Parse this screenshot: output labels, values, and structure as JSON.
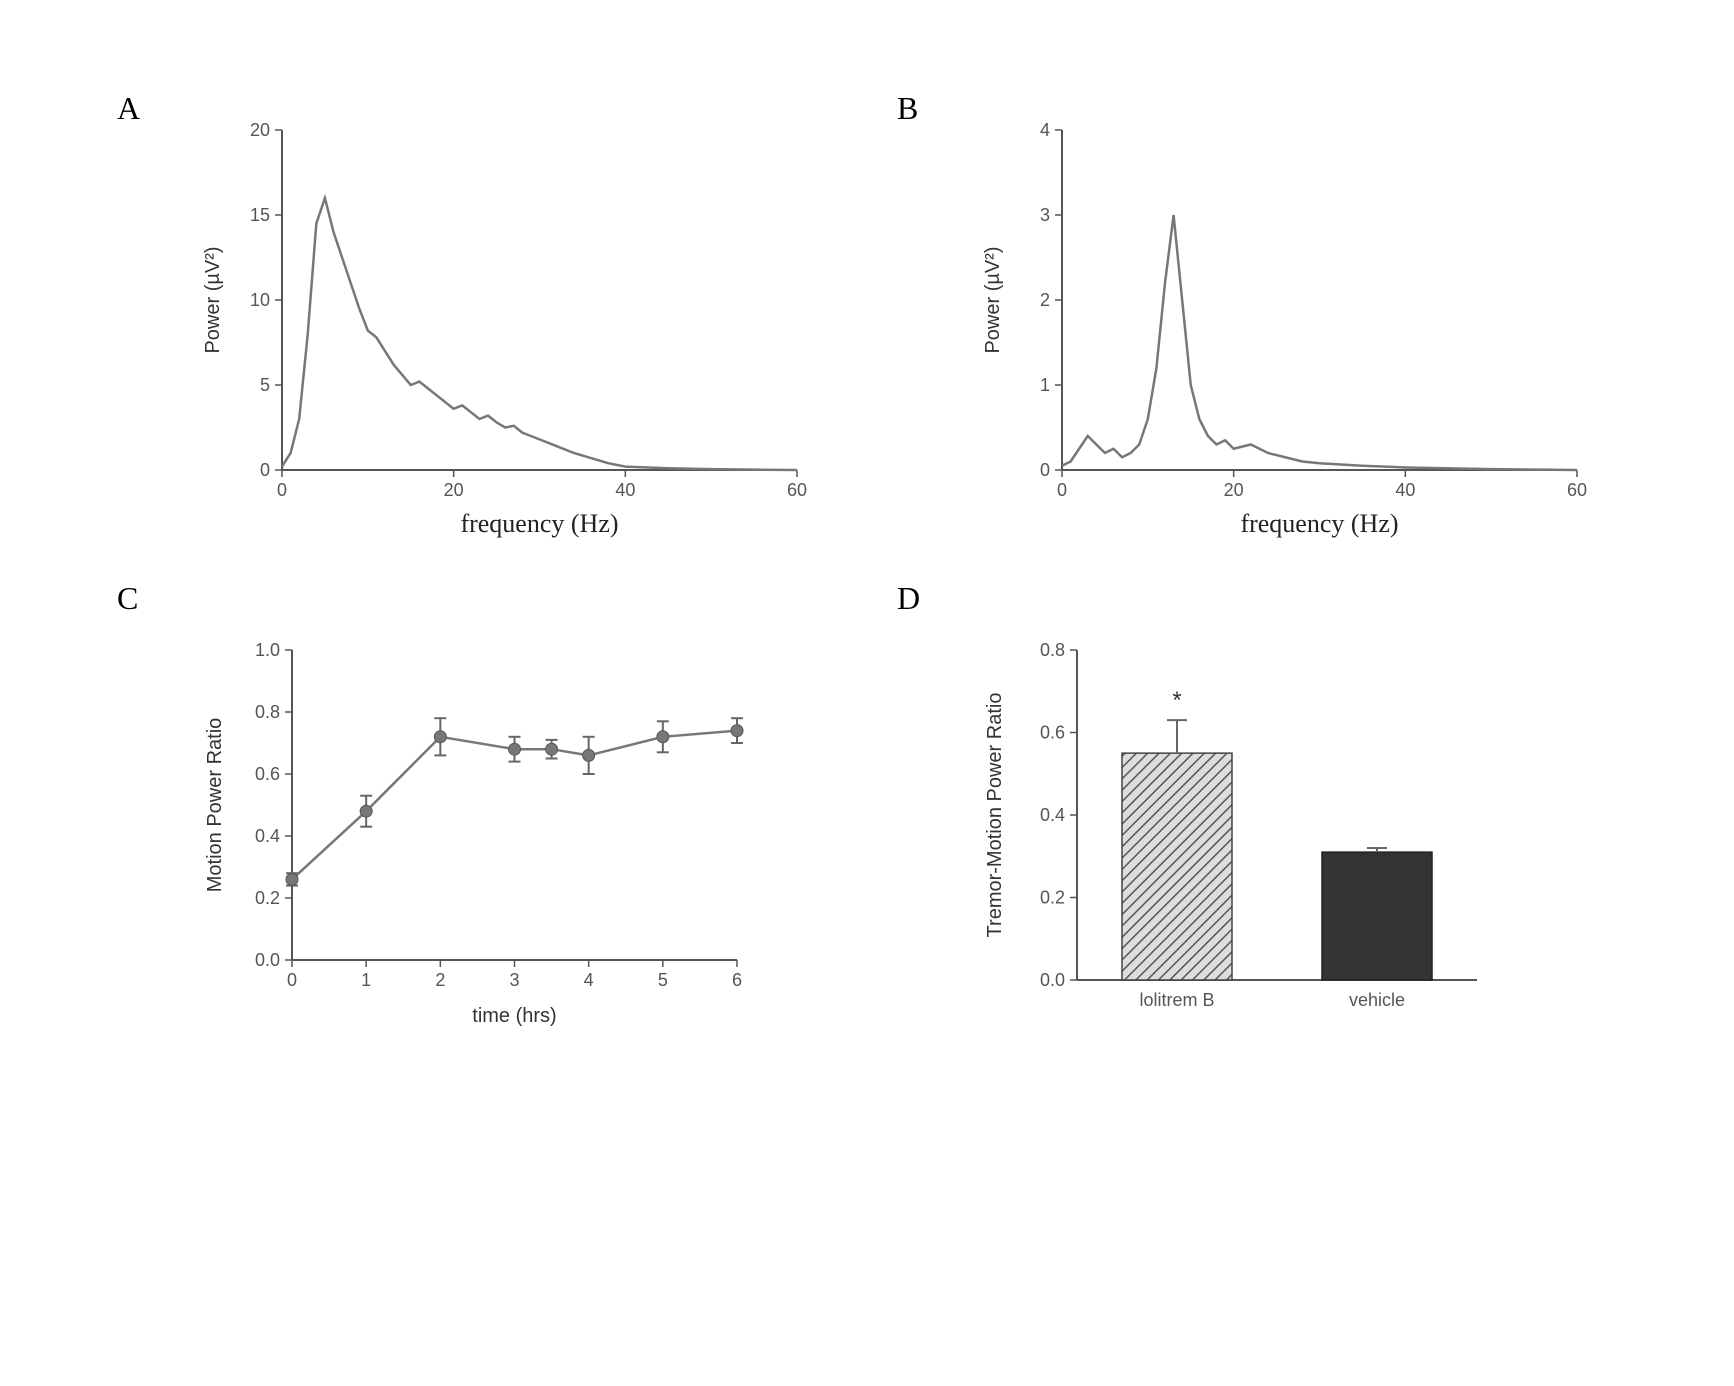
{
  "panels": {
    "A": {
      "label": "A",
      "type": "line",
      "xlabel": "frequency (Hz)",
      "ylabel": "Power (µV²)",
      "xlim": [
        0,
        60
      ],
      "xtick_step": 20,
      "ylim": [
        0,
        20
      ],
      "ytick_step": 5,
      "line_color": "#777777",
      "line_width": 2.5,
      "background_color": "#ffffff",
      "axis_color": "#555555",
      "label_fontsize_y": 20,
      "label_fontsize_x": 26,
      "tick_fontsize": 18,
      "data": [
        [
          0,
          0.2
        ],
        [
          1,
          1.0
        ],
        [
          2,
          3.0
        ],
        [
          3,
          8.0
        ],
        [
          4,
          14.5
        ],
        [
          5,
          16.0
        ],
        [
          6,
          14.0
        ],
        [
          7,
          12.5
        ],
        [
          8,
          11.0
        ],
        [
          9,
          9.5
        ],
        [
          10,
          8.2
        ],
        [
          11,
          7.8
        ],
        [
          12,
          7.0
        ],
        [
          13,
          6.2
        ],
        [
          14,
          5.6
        ],
        [
          15,
          5.0
        ],
        [
          16,
          5.2
        ],
        [
          17,
          4.8
        ],
        [
          18,
          4.4
        ],
        [
          19,
          4.0
        ],
        [
          20,
          3.6
        ],
        [
          21,
          3.8
        ],
        [
          22,
          3.4
        ],
        [
          23,
          3.0
        ],
        [
          24,
          3.2
        ],
        [
          25,
          2.8
        ],
        [
          26,
          2.5
        ],
        [
          27,
          2.6
        ],
        [
          28,
          2.2
        ],
        [
          29,
          2.0
        ],
        [
          30,
          1.8
        ],
        [
          32,
          1.4
        ],
        [
          34,
          1.0
        ],
        [
          36,
          0.7
        ],
        [
          38,
          0.4
        ],
        [
          40,
          0.2
        ],
        [
          45,
          0.1
        ],
        [
          50,
          0.05
        ],
        [
          55,
          0.02
        ],
        [
          60,
          0.0
        ]
      ]
    },
    "B": {
      "label": "B",
      "type": "line",
      "xlabel": "frequency (Hz)",
      "ylabel": "Power (µV²)",
      "xlim": [
        0,
        60
      ],
      "xtick_step": 20,
      "ylim": [
        0,
        4
      ],
      "ytick_step": 1,
      "line_color": "#777777",
      "line_width": 2.5,
      "background_color": "#ffffff",
      "axis_color": "#555555",
      "label_fontsize_y": 20,
      "label_fontsize_x": 26,
      "tick_fontsize": 18,
      "data": [
        [
          0,
          0.05
        ],
        [
          1,
          0.1
        ],
        [
          2,
          0.25
        ],
        [
          3,
          0.4
        ],
        [
          4,
          0.3
        ],
        [
          5,
          0.2
        ],
        [
          6,
          0.25
        ],
        [
          7,
          0.15
        ],
        [
          8,
          0.2
        ],
        [
          9,
          0.3
        ],
        [
          10,
          0.6
        ],
        [
          11,
          1.2
        ],
        [
          12,
          2.2
        ],
        [
          13,
          3.0
        ],
        [
          14,
          2.0
        ],
        [
          15,
          1.0
        ],
        [
          16,
          0.6
        ],
        [
          17,
          0.4
        ],
        [
          18,
          0.3
        ],
        [
          19,
          0.35
        ],
        [
          20,
          0.25
        ],
        [
          22,
          0.3
        ],
        [
          24,
          0.2
        ],
        [
          26,
          0.15
        ],
        [
          28,
          0.1
        ],
        [
          30,
          0.08
        ],
        [
          35,
          0.05
        ],
        [
          40,
          0.03
        ],
        [
          50,
          0.01
        ],
        [
          60,
          0.0
        ]
      ]
    },
    "C": {
      "label": "C",
      "type": "line-errorbar",
      "xlabel": "time (hrs)",
      "ylabel": "Motion Power Ratio",
      "xlim": [
        0,
        6
      ],
      "xtick_step": 1,
      "ylim": [
        0,
        1.0
      ],
      "ytick_step": 0.2,
      "line_color": "#888888",
      "marker_color": "#777777",
      "marker_size": 6,
      "errbar_color": "#666666",
      "errbar_cap": 6,
      "background_color": "#ffffff",
      "axis_color": "#555555",
      "label_fontsize_y": 20,
      "label_fontsize_x": 20,
      "tick_fontsize": 18,
      "points": [
        {
          "x": 0,
          "y": 0.26,
          "err": 0.02
        },
        {
          "x": 1,
          "y": 0.48,
          "err": 0.05
        },
        {
          "x": 2,
          "y": 0.72,
          "err": 0.06
        },
        {
          "x": 3,
          "y": 0.68,
          "err": 0.04
        },
        {
          "x": 3.5,
          "y": 0.68,
          "err": 0.03
        },
        {
          "x": 4,
          "y": 0.66,
          "err": 0.06
        },
        {
          "x": 5,
          "y": 0.72,
          "err": 0.05
        },
        {
          "x": 6,
          "y": 0.74,
          "err": 0.04
        }
      ]
    },
    "D": {
      "label": "D",
      "type": "bar",
      "ylabel": "Tremor-Motion Power Ratio",
      "ylim": [
        0,
        0.8
      ],
      "ytick_step": 0.2,
      "categories": [
        "lolitrem B",
        "vehicle"
      ],
      "values": [
        0.55,
        0.31
      ],
      "errors": [
        0.08,
        0.01
      ],
      "bar_fills": [
        "hatch",
        "solid"
      ],
      "bar_colors": [
        "#999999",
        "#333333"
      ],
      "bar_width": 0.55,
      "background_color": "#ffffff",
      "axis_color": "#555555",
      "errbar_color": "#555555",
      "errbar_cap": 10,
      "label_fontsize_y": 18,
      "tick_fontsize": 18,
      "significance": [
        {
          "index": 0,
          "symbol": "*"
        }
      ]
    }
  }
}
